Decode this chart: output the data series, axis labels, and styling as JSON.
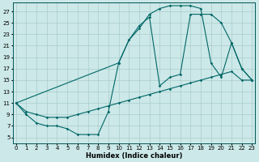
{
  "xlabel": "Humidex (Indice chaleur)",
  "bg_color": "#cce8e8",
  "grid_color": "#aacccc",
  "line_color": "#006666",
  "xlim": [
    -0.3,
    23.3
  ],
  "ylim": [
    4,
    28.5
  ],
  "xticks": [
    0,
    1,
    2,
    3,
    4,
    5,
    6,
    7,
    8,
    9,
    10,
    11,
    12,
    13,
    14,
    15,
    16,
    17,
    18,
    19,
    20,
    21,
    22,
    23
  ],
  "yticks": [
    5,
    7,
    9,
    11,
    13,
    15,
    17,
    19,
    21,
    23,
    25,
    27
  ],
  "line1_x": [
    0,
    1,
    2,
    3,
    4,
    5,
    6,
    7,
    8,
    9,
    10,
    11,
    12,
    13,
    14,
    15,
    16,
    17,
    18,
    19,
    20,
    21,
    22,
    23
  ],
  "line1_y": [
    11,
    9,
    7.5,
    7,
    7,
    6.5,
    5.5,
    5.5,
    5.5,
    9.5,
    18,
    22,
    24,
    26.5,
    27.5,
    28,
    28,
    28,
    27.5,
    18,
    15.5,
    21.5,
    17,
    15
  ],
  "line2_x": [
    0,
    1,
    2,
    3,
    4,
    5,
    6,
    7,
    8,
    9,
    10,
    11,
    12,
    13,
    14,
    15,
    16,
    17,
    18,
    19,
    20,
    21,
    22,
    23
  ],
  "line2_y": [
    11,
    9.5,
    9.0,
    8.5,
    8.5,
    8.5,
    9.0,
    9.5,
    10.0,
    10.5,
    11.0,
    11.5,
    12.0,
    12.5,
    13.0,
    13.5,
    14.0,
    14.5,
    15.0,
    15.5,
    16.0,
    16.5,
    15.0,
    15.0
  ],
  "line3_x": [
    0,
    10,
    11,
    12,
    13,
    14,
    15,
    16,
    17,
    18,
    19,
    20,
    21,
    22,
    23
  ],
  "line3_y": [
    11,
    18,
    22,
    24.5,
    26,
    14,
    15.5,
    16,
    26.5,
    26.5,
    26.5,
    25,
    21.5,
    17,
    15
  ]
}
